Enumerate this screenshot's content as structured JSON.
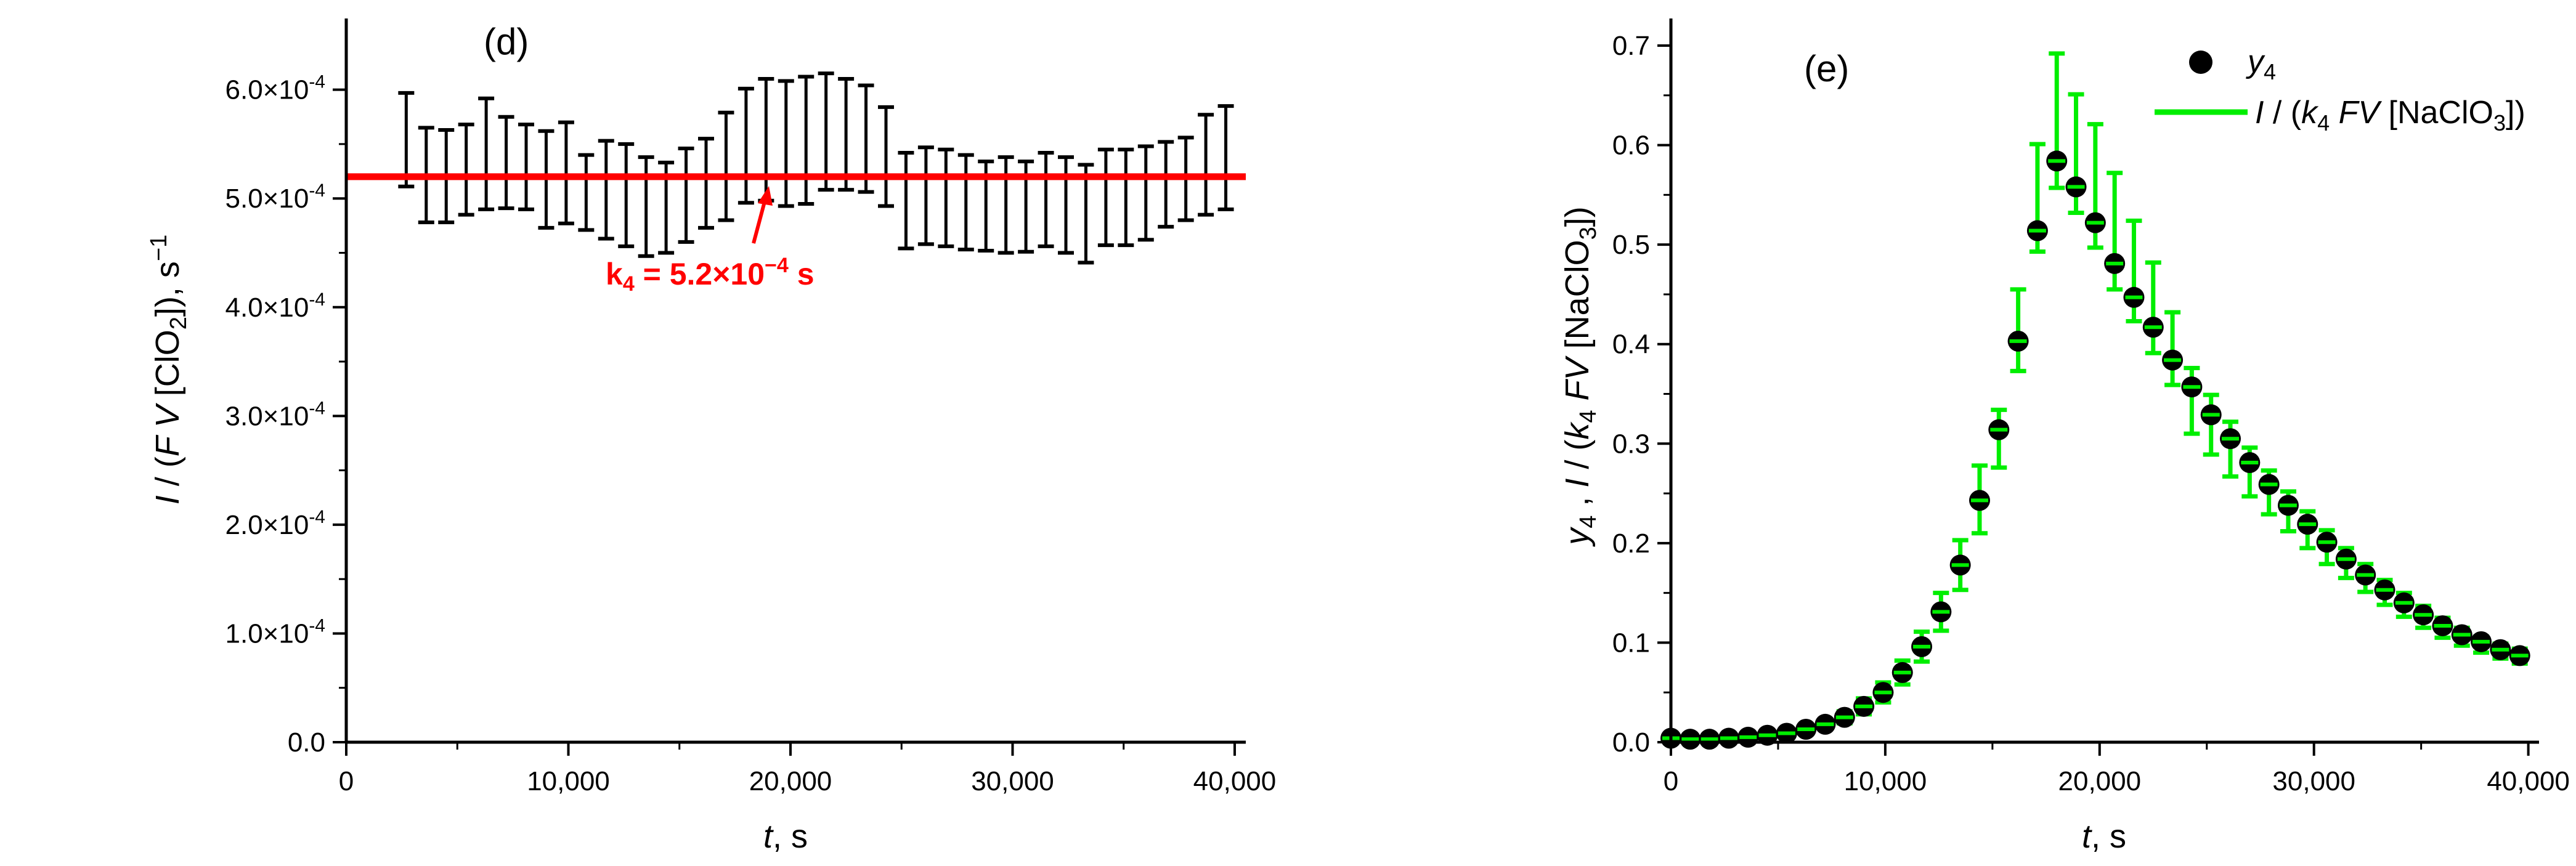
{
  "chart_data": [
    {
      "type": "line",
      "panel_label": "(d)",
      "xlabel": "t, s",
      "ylabel": "I / (F V [ClO2]), s−1",
      "xlim": [
        0,
        40500
      ],
      "ylim": [
        0,
        0.00064
      ],
      "x_ticks": [
        {
          "v": 0,
          "label": "0"
        },
        {
          "v": 10000,
          "label": "10,000"
        },
        {
          "v": 20000,
          "label": "20,000"
        },
        {
          "v": 30000,
          "label": "30,000"
        },
        {
          "v": 40000,
          "label": "40,000"
        }
      ],
      "y_ticks": [
        {
          "v": 0,
          "label": "0.0",
          "sup": ""
        },
        {
          "v": 0.0001,
          "label": "1.0×10",
          "sup": "-4"
        },
        {
          "v": 0.0002,
          "label": "2.0×10",
          "sup": "-4"
        },
        {
          "v": 0.0003,
          "label": "3.0×10",
          "sup": "-4"
        },
        {
          "v": 0.0004,
          "label": "4.0×10",
          "sup": "-4"
        },
        {
          "v": 0.0005,
          "label": "5.0×10",
          "sup": "-4"
        },
        {
          "v": 0.0006,
          "label": "6.0×10",
          "sup": "-4"
        }
      ],
      "reference_line": {
        "value": 0.00052,
        "color": "#ff0000"
      },
      "annotation": {
        "text": "k4 = 5.2×10−4 s",
        "target_x": 19000,
        "target_y": 0.000495,
        "color": "#ff0000"
      },
      "grid": false,
      "series": [
        {
          "color": "#000000",
          "x": [
            2700,
            3600,
            4500,
            5400,
            6300,
            7200,
            8100,
            9000,
            9900,
            10800,
            11700,
            12600,
            13500,
            14400,
            15300,
            16200,
            17100,
            18000,
            18900,
            19800,
            20700,
            21600,
            22500,
            23400,
            24300,
            25200,
            26100,
            27000,
            27900,
            28800,
            29700,
            30600,
            31500,
            32400,
            33300,
            34200,
            35100,
            36000,
            36900,
            37800,
            38700,
            39600
          ],
          "upper": [
            0.000597,
            0.000565,
            0.000563,
            0.000568,
            0.000592,
            0.000575,
            0.000568,
            0.000562,
            0.00057,
            0.00054,
            0.000553,
            0.00055,
            0.000538,
            0.000533,
            0.000546,
            0.000555,
            0.000579,
            0.000601,
            0.00061,
            0.000608,
            0.000612,
            0.000615,
            0.00061,
            0.000604,
            0.000584,
            0.000542,
            0.000547,
            0.000545,
            0.00054,
            0.000534,
            0.000538,
            0.000534,
            0.000542,
            0.000538,
            0.000531,
            0.000545,
            0.000545,
            0.000548,
            0.000552,
            0.000556,
            0.000577,
            0.000585
          ],
          "lower": [
            0.000511,
            0.000478,
            0.000478,
            0.000485,
            0.00049,
            0.000491,
            0.00049,
            0.000473,
            0.000477,
            0.000471,
            0.000463,
            0.000456,
            0.000447,
            0.00045,
            0.00046,
            0.000473,
            0.00048,
            0.000496,
            0.000498,
            0.000493,
            0.000495,
            0.000508,
            0.000508,
            0.000506,
            0.000493,
            0.000454,
            0.000458,
            0.000456,
            0.000453,
            0.000452,
            0.00045,
            0.000451,
            0.000456,
            0.00045,
            0.000441,
            0.000457,
            0.000457,
            0.000462,
            0.000474,
            0.00048,
            0.000485,
            0.00049
          ]
        }
      ]
    },
    {
      "type": "scatter",
      "panel_label": "(e)",
      "xlabel": "t, s",
      "ylabel": "y4 , I / (k4 FV [NaClO3])",
      "xlim": [
        0,
        40500
      ],
      "ylim": [
        0,
        0.7
      ],
      "x_ticks": [
        {
          "v": 0,
          "label": "0"
        },
        {
          "v": 10000,
          "label": "10,000"
        },
        {
          "v": 20000,
          "label": "20,000"
        },
        {
          "v": 30000,
          "label": "30,000"
        },
        {
          "v": 40000,
          "label": "40,000"
        }
      ],
      "y_ticks": [
        {
          "v": 0,
          "label": "0.0"
        },
        {
          "v": 0.1,
          "label": "0.1"
        },
        {
          "v": 0.2,
          "label": "0.2"
        },
        {
          "v": 0.3,
          "label": "0.3"
        },
        {
          "v": 0.4,
          "label": "0.4"
        },
        {
          "v": 0.5,
          "label": "0.5"
        },
        {
          "v": 0.6,
          "label": "0.6"
        },
        {
          "v": 0.7,
          "label": "0.7"
        }
      ],
      "legend": {
        "position": "top-right",
        "entries": [
          {
            "label": "y4",
            "marker": "circle",
            "color": "#000000"
          },
          {
            "label": "I / (k4 FV [NaClO3])",
            "marker": "line",
            "color": "#00ee00"
          }
        ]
      },
      "grid": false,
      "x": [
        0,
        900,
        1800,
        2700,
        3600,
        4500,
        5400,
        6300,
        7200,
        8100,
        9000,
        9900,
        10800,
        11700,
        12600,
        13500,
        14400,
        15300,
        16200,
        17100,
        18000,
        18900,
        19800,
        20700,
        21600,
        22500,
        23400,
        24300,
        25200,
        26100,
        27000,
        27900,
        28800,
        29700,
        30600,
        31500,
        32400,
        33300,
        34200,
        35100,
        36000,
        36900,
        37800,
        38700,
        39600
      ],
      "y4": [
        0.004,
        0.003,
        0.003,
        0.004,
        0.005,
        0.007,
        0.009,
        0.013,
        0.018,
        0.025,
        0.036,
        0.05,
        0.07,
        0.096,
        0.131,
        0.178,
        0.243,
        0.314,
        0.403,
        0.514,
        0.584,
        0.558,
        0.522,
        0.481,
        0.447,
        0.417,
        0.384,
        0.357,
        0.329,
        0.305,
        0.281,
        0.259,
        0.238,
        0.219,
        0.201,
        0.184,
        0.168,
        0.153,
        0.14,
        0.128,
        0.117,
        0.108,
        0.101,
        0.093,
        0.087
      ],
      "ratio_err_upper": [
        0.006,
        0.004,
        0.004,
        0.005,
        0.006,
        0.008,
        0.011,
        0.016,
        0.022,
        0.031,
        0.044,
        0.06,
        0.082,
        0.111,
        0.15,
        0.203,
        0.278,
        0.334,
        0.455,
        0.601,
        0.692,
        0.651,
        0.621,
        0.572,
        0.524,
        0.482,
        0.432,
        0.376,
        0.349,
        0.322,
        0.296,
        0.273,
        0.252,
        0.232,
        0.213,
        0.195,
        0.179,
        0.163,
        0.15,
        0.137,
        0.125,
        0.115,
        0.106,
        0.099,
        0.094
      ],
      "ratio_err_lower": [
        0.002,
        0.002,
        0.002,
        0.003,
        0.004,
        0.006,
        0.007,
        0.01,
        0.014,
        0.019,
        0.028,
        0.04,
        0.058,
        0.081,
        0.112,
        0.153,
        0.21,
        0.276,
        0.373,
        0.493,
        0.557,
        0.532,
        0.497,
        0.455,
        0.423,
        0.391,
        0.359,
        0.31,
        0.289,
        0.267,
        0.247,
        0.229,
        0.212,
        0.195,
        0.179,
        0.165,
        0.151,
        0.138,
        0.126,
        0.115,
        0.105,
        0.097,
        0.09,
        0.084,
        0.079
      ]
    }
  ]
}
